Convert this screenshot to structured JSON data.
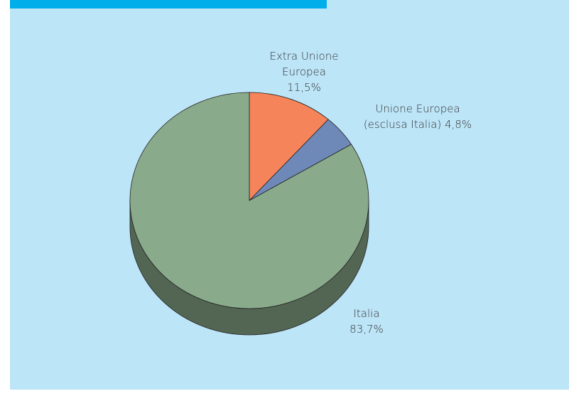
{
  "chart_data": {
    "type": "pie",
    "categories": [
      "Extra Unione Europea",
      "Unione Europea (esclusa Italia)",
      "Italia"
    ],
    "values": [
      11.5,
      4.8,
      83.7
    ],
    "value_labels": [
      "11,5%",
      "4,8%",
      "83,7%"
    ],
    "colors": [
      "#f5845a",
      "#6e88b8",
      "#8aaa8c"
    ]
  }
}
